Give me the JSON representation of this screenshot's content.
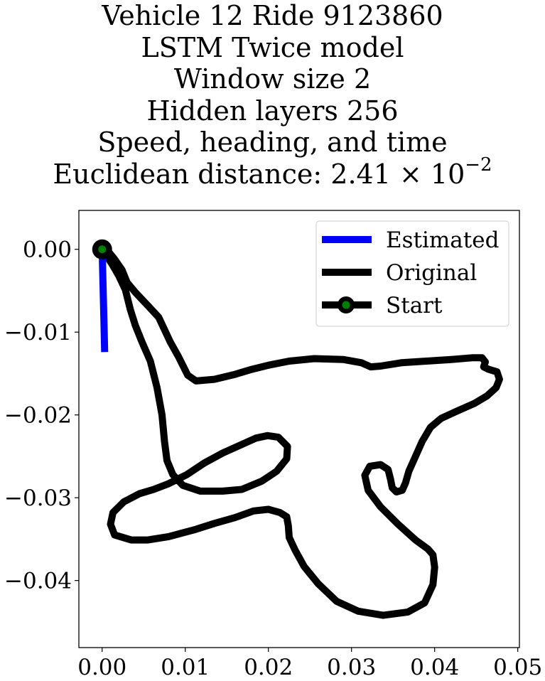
{
  "chart_data": {
    "type": "line",
    "title_lines": [
      "Vehicle 12 Ride 9123860",
      "LSTM Twice model",
      "Window size 2",
      "Hidden layers 256",
      "Speed, heading, and time"
    ],
    "title_metric_label": "Euclidean distance: 2.41",
    "title_metric_times": "×",
    "title_metric_base": "10",
    "title_metric_exp": "−2",
    "xlabel": "",
    "ylabel": "",
    "xlim": [
      -0.0028,
      0.0502
    ],
    "ylim": [
      -0.0481,
      0.0047
    ],
    "x_ticks": [
      {
        "value": 0.0,
        "label": "0.00"
      },
      {
        "value": 0.01,
        "label": "0.01"
      },
      {
        "value": 0.02,
        "label": "0.02"
      },
      {
        "value": 0.03,
        "label": "0.03"
      },
      {
        "value": 0.04,
        "label": "0.04"
      },
      {
        "value": 0.05,
        "label": "0.05"
      }
    ],
    "y_ticks": [
      {
        "value": 0.0,
        "label": "0.00"
      },
      {
        "value": -0.01,
        "label": "−0.01"
      },
      {
        "value": -0.02,
        "label": "−0.02"
      },
      {
        "value": -0.03,
        "label": "−0.03"
      },
      {
        "value": -0.04,
        "label": "−0.04"
      }
    ],
    "grid": false,
    "legend_position": "top-right",
    "series": [
      {
        "name": "Estimated",
        "color": "#0000ff",
        "points": [
          [
            0.0,
            0.0
          ],
          [
            0.0001,
            -0.004
          ],
          [
            0.0002,
            -0.008
          ],
          [
            0.0003,
            -0.0124
          ]
        ]
      },
      {
        "name": "Original",
        "color": "#000000",
        "points": [
          [
            0.0,
            0.0
          ],
          [
            0.0007,
            -0.0002
          ],
          [
            0.0015,
            -0.0012
          ],
          [
            0.0024,
            -0.0025
          ],
          [
            0.003,
            -0.004
          ],
          [
            0.004,
            -0.0052
          ],
          [
            0.0055,
            -0.0068
          ],
          [
            0.0068,
            -0.0082
          ],
          [
            0.0082,
            -0.0112
          ],
          [
            0.0092,
            -0.013
          ],
          [
            0.0103,
            -0.0152
          ],
          [
            0.0113,
            -0.0159
          ],
          [
            0.0135,
            -0.0157
          ],
          [
            0.016,
            -0.0151
          ],
          [
            0.018,
            -0.0145
          ],
          [
            0.02,
            -0.014
          ],
          [
            0.0225,
            -0.0135
          ],
          [
            0.0255,
            -0.0132
          ],
          [
            0.029,
            -0.0133
          ],
          [
            0.0312,
            -0.0137
          ],
          [
            0.0323,
            -0.0142
          ],
          [
            0.0335,
            -0.0141
          ],
          [
            0.036,
            -0.0137
          ],
          [
            0.039,
            -0.0135
          ],
          [
            0.042,
            -0.0133
          ],
          [
            0.0445,
            -0.0131
          ],
          [
            0.0457,
            -0.0131
          ],
          [
            0.0461,
            -0.0136
          ],
          [
            0.0459,
            -0.0142
          ],
          [
            0.0465,
            -0.0145
          ],
          [
            0.0475,
            -0.0148
          ],
          [
            0.0478,
            -0.0157
          ],
          [
            0.0474,
            -0.0167
          ],
          [
            0.0463,
            -0.0177
          ],
          [
            0.0448,
            -0.0186
          ],
          [
            0.043,
            -0.0194
          ],
          [
            0.0408,
            -0.0204
          ],
          [
            0.0395,
            -0.0215
          ],
          [
            0.0385,
            -0.0232
          ],
          [
            0.0377,
            -0.025
          ],
          [
            0.0369,
            -0.0268
          ],
          [
            0.0365,
            -0.0282
          ],
          [
            0.0361,
            -0.0291
          ],
          [
            0.0354,
            -0.0293
          ],
          [
            0.0349,
            -0.0288
          ],
          [
            0.0347,
            -0.0278
          ],
          [
            0.0344,
            -0.0266
          ],
          [
            0.0335,
            -0.026
          ],
          [
            0.0322,
            -0.0262
          ],
          [
            0.0316,
            -0.0273
          ],
          [
            0.032,
            -0.0291
          ],
          [
            0.0335,
            -0.0311
          ],
          [
            0.0356,
            -0.0332
          ],
          [
            0.0377,
            -0.0351
          ],
          [
            0.0392,
            -0.0362
          ],
          [
            0.0398,
            -0.0369
          ],
          [
            0.04,
            -0.0384
          ],
          [
            0.0398,
            -0.0405
          ],
          [
            0.0388,
            -0.0427
          ],
          [
            0.0368,
            -0.0438
          ],
          [
            0.0338,
            -0.0442
          ],
          [
            0.0308,
            -0.0437
          ],
          [
            0.0282,
            -0.0425
          ],
          [
            0.026,
            -0.0404
          ],
          [
            0.0243,
            -0.0383
          ],
          [
            0.0232,
            -0.0363
          ],
          [
            0.0225,
            -0.0348
          ],
          [
            0.0224,
            -0.0334
          ],
          [
            0.0222,
            -0.0323
          ],
          [
            0.0214,
            -0.0318
          ],
          [
            0.02,
            -0.0314
          ],
          [
            0.0182,
            -0.0316
          ],
          [
            0.016,
            -0.0324
          ],
          [
            0.0135,
            -0.0331
          ],
          [
            0.011,
            -0.0339
          ],
          [
            0.008,
            -0.0347
          ],
          [
            0.0055,
            -0.0351
          ],
          [
            0.0035,
            -0.0351
          ],
          [
            0.0015,
            -0.0345
          ],
          [
            0.001,
            -0.0332
          ],
          [
            0.0013,
            -0.0318
          ],
          [
            0.0026,
            -0.0305
          ],
          [
            0.0045,
            -0.0295
          ],
          [
            0.0062,
            -0.029
          ],
          [
            0.008,
            -0.0283
          ],
          [
            0.0102,
            -0.0272
          ],
          [
            0.0123,
            -0.0258
          ],
          [
            0.0145,
            -0.0246
          ],
          [
            0.0165,
            -0.0237
          ],
          [
            0.0185,
            -0.0228
          ],
          [
            0.0199,
            -0.0225
          ],
          [
            0.0212,
            -0.0227
          ],
          [
            0.0223,
            -0.0238
          ],
          [
            0.0222,
            -0.0253
          ],
          [
            0.021,
            -0.0268
          ],
          [
            0.0192,
            -0.028
          ],
          [
            0.0168,
            -0.029
          ],
          [
            0.0145,
            -0.0292
          ],
          [
            0.0118,
            -0.0292
          ],
          [
            0.0097,
            -0.0285
          ],
          [
            0.0085,
            -0.0272
          ],
          [
            0.0078,
            -0.0255
          ],
          [
            0.0075,
            -0.0232
          ],
          [
            0.0072,
            -0.02
          ],
          [
            0.0066,
            -0.0167
          ],
          [
            0.0058,
            -0.0135
          ],
          [
            0.0048,
            -0.0112
          ],
          [
            0.004,
            -0.0092
          ],
          [
            0.0034,
            -0.0073
          ],
          [
            0.0028,
            -0.0049
          ],
          [
            0.002,
            -0.0032
          ],
          [
            0.0012,
            -0.0018
          ],
          [
            0.0004,
            -0.0006
          ],
          [
            0.0,
            0.0
          ]
        ]
      },
      {
        "name": "Start",
        "color": "#000000",
        "marker_color": "#008000",
        "points": [
          [
            0.0,
            0.0
          ]
        ]
      }
    ]
  }
}
